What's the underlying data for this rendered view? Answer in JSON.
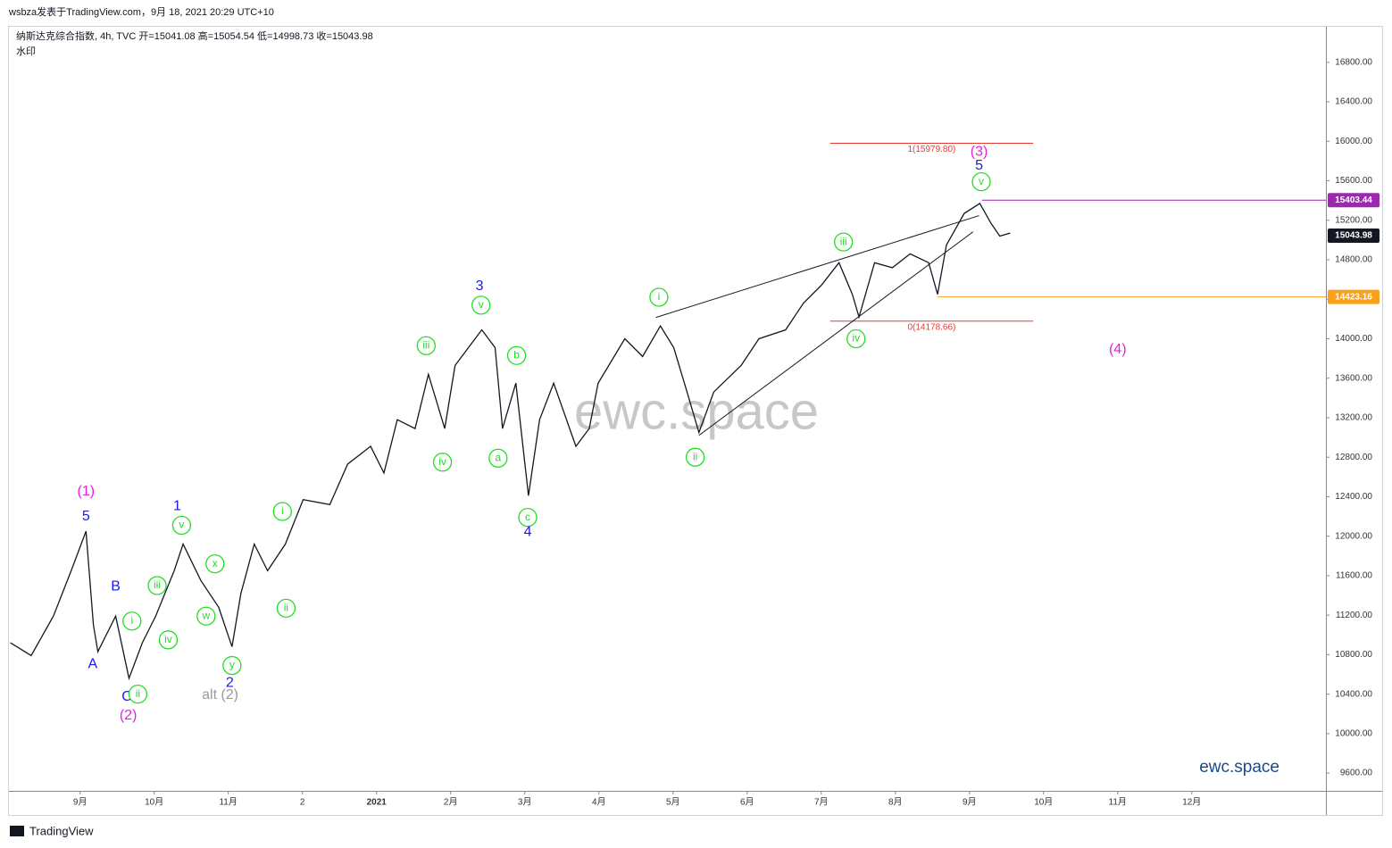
{
  "header": "wsbza发表于TradingView.com，9月 18, 2021 20:29 UTC+10",
  "footer": "TradingView",
  "chart_data": {
    "type": "line",
    "title": "纳斯达克综合指数, 4h, TVC  开=15041.08  高=15054.54  低=14998.73  收=15043.98",
    "subtitle": "水印",
    "watermark": "ewc.space",
    "brand": "ewc.space",
    "color": "#131722",
    "x": [
      -0.94,
      -0.66,
      -0.36,
      -0.12,
      0.08,
      0.18,
      0.24,
      0.48,
      0.66,
      0.84,
      1.02,
      1.27,
      1.39,
      1.63,
      1.87,
      2.05,
      2.17,
      2.35,
      2.53,
      2.77,
      3.01,
      3.37,
      3.61,
      3.92,
      4.1,
      4.28,
      4.52,
      4.7,
      4.92,
      5.06,
      5.42,
      5.6,
      5.7,
      5.88,
      6.05,
      6.2,
      6.39,
      6.69,
      6.87,
      6.99,
      7.35,
      7.59,
      7.83,
      8.01,
      8.19,
      8.35,
      8.55,
      8.92,
      9.16,
      9.52,
      9.76,
      10.0,
      10.24,
      10.42,
      10.51,
      10.72,
      10.96,
      11.2,
      11.45,
      11.57,
      11.69,
      11.93,
      12.14,
      12.29,
      12.41,
      12.55
    ],
    "values": [
      10920,
      10790,
      11190,
      11650,
      12050,
      11100,
      10830,
      11190,
      10560,
      10920,
      11190,
      11650,
      11920,
      11550,
      11280,
      10880,
      11420,
      11920,
      11650,
      11920,
      12370,
      12320,
      12730,
      12910,
      12640,
      13180,
      13090,
      13640,
      13090,
      13730,
      14090,
      13910,
      13090,
      13550,
      12410,
      13180,
      13550,
      12910,
      13090,
      13550,
      14000,
      13820,
      14130,
      13910,
      13460,
      13050,
      13460,
      13730,
      14000,
      14090,
      14360,
      14540,
      14770,
      14450,
      14220,
      14770,
      14720,
      14860,
      14770,
      14450,
      14950,
      15270,
      15370,
      15170,
      15040,
      15070
    ],
    "xlim": [
      -0.96,
      16.81
    ],
    "xticks": [
      {
        "value": 0,
        "label": "9月"
      },
      {
        "value": 1,
        "label": "10月"
      },
      {
        "value": 2,
        "label": "11月"
      },
      {
        "value": 3,
        "label": "2"
      },
      {
        "value": 4,
        "label": "2021"
      },
      {
        "value": 5,
        "label": "2月"
      },
      {
        "value": 6,
        "label": "3月"
      },
      {
        "value": 7,
        "label": "4月"
      },
      {
        "value": 8,
        "label": "5月"
      },
      {
        "value": 9,
        "label": "6月"
      },
      {
        "value": 10,
        "label": "7月"
      },
      {
        "value": 11,
        "label": "8月"
      },
      {
        "value": 12,
        "label": "9月"
      },
      {
        "value": 13,
        "label": "10月"
      },
      {
        "value": 14,
        "label": "11月"
      },
      {
        "value": 15,
        "label": "12月"
      }
    ],
    "ylim": [
      9420,
      17160
    ],
    "yticks": [
      {
        "value": 9600,
        "label": "9600.00"
      },
      {
        "value": 10000,
        "label": "10000.00"
      },
      {
        "value": 10400,
        "label": "10400.00"
      },
      {
        "value": 10800,
        "label": "10800.00"
      },
      {
        "value": 11200,
        "label": "11200.00"
      },
      {
        "value": 11600,
        "label": "11600.00"
      },
      {
        "value": 12000,
        "label": "12000.00"
      },
      {
        "value": 12400,
        "label": "12400.00"
      },
      {
        "value": 12800,
        "label": "12800.00"
      },
      {
        "value": 13200,
        "label": "13200.00"
      },
      {
        "value": 13600,
        "label": "13600.00"
      },
      {
        "value": 14000,
        "label": "14000.00"
      },
      {
        "value": 14400,
        "label": "14400.00"
      },
      {
        "value": 14800,
        "label": "14800.00"
      },
      {
        "value": 15200,
        "label": "15200.00"
      },
      {
        "value": 15600,
        "label": "15600.00"
      },
      {
        "value": 16000,
        "label": "16000.00"
      },
      {
        "value": 16400,
        "label": "16400.00"
      },
      {
        "value": 16800,
        "label": "16800.00"
      }
    ],
    "grid": false,
    "price_tags": [
      {
        "value": 15403.44,
        "label": "15403.44",
        "color": "#9c27b0",
        "x0": 12.17
      },
      {
        "value": 15043.98,
        "label": "15043.98",
        "color": "#131722"
      },
      {
        "value": 14423.16,
        "label": "14423.16",
        "color": "#f7a21b",
        "x0": 11.57
      }
    ],
    "fib_levels": [
      {
        "value": 15979.8,
        "label": "1(15979.80)",
        "color": "#e53935",
        "x0": 10.12,
        "x1": 12.86
      },
      {
        "value": 14178.66,
        "label": "0(14178.66)",
        "color": "#e53935",
        "x0": 10.12,
        "x1": 12.86
      }
    ],
    "trend_lines": [
      {
        "x": [
          7.77,
          12.13
        ],
        "values": [
          14216,
          15247
        ]
      },
      {
        "x": [
          8.35,
          12.05
        ],
        "values": [
          13021,
          15084
        ]
      }
    ],
    "wave_labels": [
      {
        "text": "(1)",
        "color": "#e91ee0",
        "x": 0.08,
        "y": 12450,
        "circle": false
      },
      {
        "text": "5",
        "color": "#1a1ae6",
        "x": 0.08,
        "y": 12200,
        "circle": false
      },
      {
        "text": "A",
        "color": "#1a1ae6",
        "x": 0.17,
        "y": 10700,
        "circle": false
      },
      {
        "text": "B",
        "color": "#1a1ae6",
        "x": 0.48,
        "y": 11490,
        "circle": false
      },
      {
        "text": "C",
        "color": "#1a1ae6",
        "x": 0.63,
        "y": 10370,
        "circle": false
      },
      {
        "text": "(2)",
        "color": "#e91ee0",
        "x": 0.65,
        "y": 10180,
        "circle": false
      },
      {
        "text": "i",
        "color": "#22dd22",
        "x": 0.7,
        "y": 11140,
        "circle": true
      },
      {
        "text": "ii",
        "color": "#22dd22",
        "x": 0.78,
        "y": 10400,
        "circle": true
      },
      {
        "text": "iii",
        "color": "#22dd22",
        "x": 1.04,
        "y": 11500,
        "circle": true
      },
      {
        "text": "iv",
        "color": "#22dd22",
        "x": 1.19,
        "y": 10950,
        "circle": true
      },
      {
        "text": "1",
        "color": "#1a1ae6",
        "x": 1.31,
        "y": 12300,
        "circle": false
      },
      {
        "text": "v",
        "color": "#22dd22",
        "x": 1.37,
        "y": 12110,
        "circle": true
      },
      {
        "text": "x",
        "color": "#22dd22",
        "x": 1.82,
        "y": 11720,
        "circle": true
      },
      {
        "text": "w",
        "color": "#22dd22",
        "x": 1.7,
        "y": 11190,
        "circle": true
      },
      {
        "text": "y",
        "color": "#22dd22",
        "x": 2.05,
        "y": 10690,
        "circle": true
      },
      {
        "text": "2",
        "color": "#1a1ae6",
        "x": 2.02,
        "y": 10510,
        "circle": false
      },
      {
        "text": "alt (2)",
        "color": "#999999",
        "x": 1.89,
        "y": 10390,
        "circle": false
      },
      {
        "text": "i",
        "color": "#22dd22",
        "x": 2.73,
        "y": 12250,
        "circle": true
      },
      {
        "text": "ii",
        "color": "#22dd22",
        "x": 2.78,
        "y": 11270,
        "circle": true
      },
      {
        "text": "iii",
        "color": "#22dd22",
        "x": 4.67,
        "y": 13930,
        "circle": true
      },
      {
        "text": "iv",
        "color": "#22dd22",
        "x": 4.89,
        "y": 12750,
        "circle": true
      },
      {
        "text": "3",
        "color": "#1a1ae6",
        "x": 5.39,
        "y": 14530,
        "circle": false
      },
      {
        "text": "v",
        "color": "#22dd22",
        "x": 5.41,
        "y": 14340,
        "circle": true
      },
      {
        "text": "b",
        "color": "#22dd22",
        "x": 5.89,
        "y": 13830,
        "circle": true
      },
      {
        "text": "a",
        "color": "#22dd22",
        "x": 5.64,
        "y": 12790,
        "circle": true
      },
      {
        "text": "c",
        "color": "#22dd22",
        "x": 6.04,
        "y": 12190,
        "circle": true
      },
      {
        "text": "4",
        "color": "#1a1ae6",
        "x": 6.04,
        "y": 12040,
        "circle": false
      },
      {
        "text": "i",
        "color": "#22dd22",
        "x": 7.81,
        "y": 14420,
        "circle": true
      },
      {
        "text": "ii",
        "color": "#22dd22",
        "x": 8.3,
        "y": 12800,
        "circle": true
      },
      {
        "text": "iii",
        "color": "#22dd22",
        "x": 10.3,
        "y": 14980,
        "circle": true
      },
      {
        "text": "iv",
        "color": "#22dd22",
        "x": 10.47,
        "y": 14000,
        "circle": true
      },
      {
        "text": "(3)",
        "color": "#e91ee0",
        "x": 12.13,
        "y": 15890,
        "circle": false
      },
      {
        "text": "5",
        "color": "#1a1ae6",
        "x": 12.13,
        "y": 15750,
        "circle": false
      },
      {
        "text": "v",
        "color": "#22dd22",
        "x": 12.16,
        "y": 15590,
        "circle": true
      },
      {
        "text": "(4)",
        "color": "#e91ee0",
        "x": 14.0,
        "y": 13890,
        "circle": false
      }
    ]
  }
}
